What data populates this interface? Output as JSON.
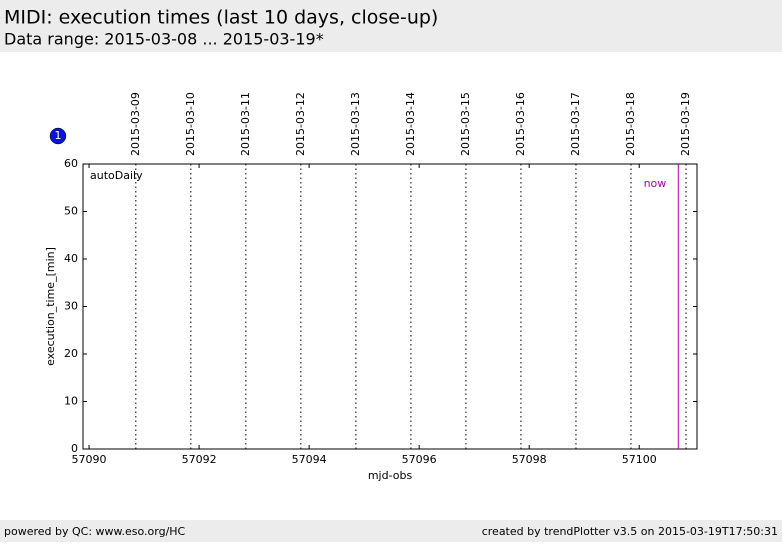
{
  "header": {
    "title": "MIDI: execution times (last 10 days, close-up)",
    "subtitle": "Data range: 2015-03-08 ... 2015-03-19*"
  },
  "badge": "1",
  "chart_data": {
    "type": "line",
    "x_label": "mjd-obs",
    "y_label": "execution_time_[min]",
    "panel_label": "autoDaily",
    "xlim": [
      57089.89,
      57101.05
    ],
    "ylim": [
      0,
      60
    ],
    "xticks": [
      57090,
      57092,
      57094,
      57096,
      57098,
      57100
    ],
    "yticks": [
      0,
      10,
      20,
      30,
      40,
      50,
      60
    ],
    "date_markers": {
      "x": [
        57090.85,
        57091.85,
        57092.85,
        57093.85,
        57094.85,
        57095.85,
        57096.85,
        57097.85,
        57098.85,
        57099.85,
        57100.85
      ],
      "labels": [
        "2015-03-09",
        "2015-03-10",
        "2015-03-11",
        "2015-03-12",
        "2015-03-13",
        "2015-03-14",
        "2015-03-15",
        "2015-03-16",
        "2015-03-17",
        "2015-03-18",
        "2015-03-19"
      ]
    },
    "now": {
      "x": 57100.71,
      "label": "now",
      "color": "#b000b0"
    }
  },
  "footer": {
    "left": "powered by QC: www.eso.org/HC",
    "right": "created by trendPlotter v3.5 on 2015-03-19T17:50:31"
  }
}
